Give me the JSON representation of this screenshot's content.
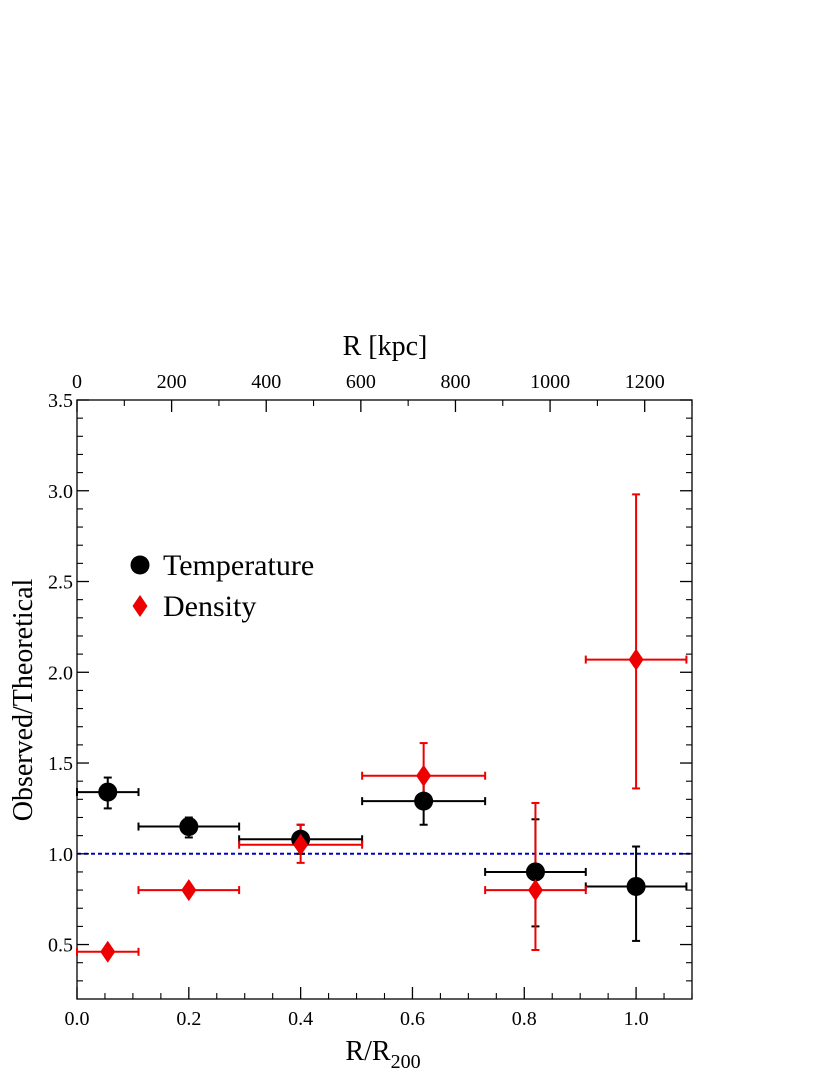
{
  "chart_data": {
    "type": "scatter",
    "xlabel": "R/R",
    "xlabel_sub": "200",
    "ylabel": "Observed/Theoretical",
    "top_xlabel": "R [kpc]",
    "xlim": [
      0.0,
      1.1
    ],
    "ylim": [
      0.2,
      3.5
    ],
    "top_xlim": [
      0,
      1300
    ],
    "x_ticks": [
      "0.0",
      "0.2",
      "0.4",
      "0.6",
      "0.8",
      "1.0"
    ],
    "y_ticks": [
      "0.5",
      "1.0",
      "1.5",
      "2.0",
      "2.5",
      "3.0",
      "3.5"
    ],
    "top_ticks": [
      "0",
      "200",
      "400",
      "600",
      "800",
      "1000",
      "1200"
    ],
    "reference_line": {
      "y": 1.0,
      "color": "#0000cc",
      "style": "dotted"
    },
    "legend_position": "upper-left",
    "grid": false,
    "series": [
      {
        "name": "Temperature",
        "color": "#000000",
        "marker": "circle",
        "points": [
          {
            "x": 0.055,
            "xlo": 0.0,
            "xhi": 0.11,
            "y": 1.34,
            "ylo": 1.25,
            "yhi": 1.42
          },
          {
            "x": 0.2,
            "xlo": 0.11,
            "xhi": 0.29,
            "y": 1.15,
            "ylo": 1.09,
            "yhi": 1.2
          },
          {
            "x": 0.4,
            "xlo": 0.29,
            "xhi": 0.51,
            "y": 1.08,
            "ylo": 1.0,
            "yhi": 1.16
          },
          {
            "x": 0.62,
            "xlo": 0.51,
            "xhi": 0.73,
            "y": 1.29,
            "ylo": 1.16,
            "yhi": 1.42
          },
          {
            "x": 0.82,
            "xlo": 0.73,
            "xhi": 0.91,
            "y": 0.9,
            "ylo": 0.6,
            "yhi": 1.19
          },
          {
            "x": 1.0,
            "xlo": 0.91,
            "xhi": 1.09,
            "y": 0.82,
            "ylo": 0.52,
            "yhi": 1.04
          }
        ]
      },
      {
        "name": "Density",
        "color": "#ee0000",
        "marker": "diamond",
        "points": [
          {
            "x": 0.055,
            "xlo": 0.0,
            "xhi": 0.11,
            "y": 0.46,
            "ylo": 0.46,
            "yhi": 0.46
          },
          {
            "x": 0.2,
            "xlo": 0.11,
            "xhi": 0.29,
            "y": 0.8,
            "ylo": 0.8,
            "yhi": 0.8
          },
          {
            "x": 0.4,
            "xlo": 0.29,
            "xhi": 0.51,
            "y": 1.05,
            "ylo": 0.95,
            "yhi": 1.16
          },
          {
            "x": 0.62,
            "xlo": 0.51,
            "xhi": 0.73,
            "y": 1.43,
            "ylo": 1.3,
            "yhi": 1.61
          },
          {
            "x": 0.82,
            "xlo": 0.73,
            "xhi": 0.91,
            "y": 0.8,
            "ylo": 0.47,
            "yhi": 1.28
          },
          {
            "x": 1.0,
            "xlo": 0.91,
            "xhi": 1.09,
            "y": 2.07,
            "ylo": 1.36,
            "yhi": 2.98
          }
        ]
      }
    ]
  }
}
